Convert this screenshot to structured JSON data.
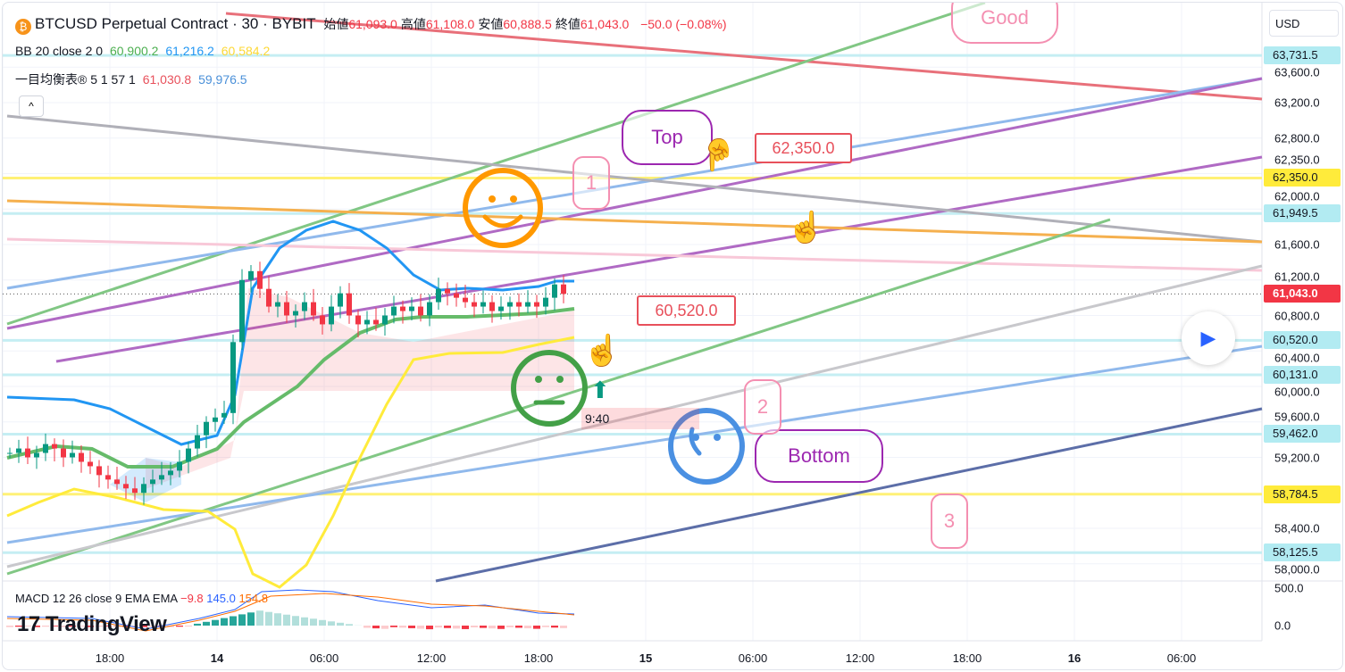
{
  "header": {
    "symbol": "BTCUSD Perpetual Contract · 30 · BYBIT",
    "coin_glyph": "₿",
    "ohlc": [
      {
        "k": "始値",
        "v": "61,093.0"
      },
      {
        "k": "高値",
        "v": "61,108.0"
      },
      {
        "k": "安値",
        "v": "60,888.5"
      },
      {
        "k": "終値",
        "v": "61,043.0"
      }
    ],
    "change": "−50.0 (−0.08%)"
  },
  "indicators": {
    "bb": {
      "label": "BB 20 close 2 0",
      "basis": "60,900.2",
      "upper": "61,216.2",
      "lower": "60,584.2"
    },
    "ichimoku": {
      "label": "一目均衡表® 5 1 57 1",
      "v1": "61,030.8",
      "v2": "59,976.5"
    },
    "macd": {
      "label": "MACD 12 26 close 9 EMA EMA",
      "hist": "−9.8",
      "macd": "145.0",
      "signal": "154.8"
    }
  },
  "collapse_icon": "^",
  "currency": "USD",
  "price_axis": [
    "63,600.0",
    "63,200.0",
    "62,800.0",
    "62,350.0",
    "62,000.0",
    "61,600.0",
    "61,200.0",
    "60,800.0",
    "60,400.0",
    "60,000.0",
    "59,600.0",
    "59,200.0",
    "58,400.0",
    "58,000.0"
  ],
  "macd_axis": [
    "500.0",
    "0.0"
  ],
  "price_tags": [
    {
      "label": "63,731.5",
      "price": 63731.5,
      "color": "#b2ebf2"
    },
    {
      "label": "62,350.0",
      "price": 62350,
      "color": "#ffeb3b"
    },
    {
      "label": "61,949.5",
      "price": 61949.5,
      "color": "#b2ebf2"
    },
    {
      "label": "61,043.0",
      "price": 61043,
      "color": "#f23645"
    },
    {
      "label": "60,520.0",
      "price": 60520,
      "color": "#b2ebf2"
    },
    {
      "label": "60,131.0",
      "price": 60131,
      "color": "#b2ebf2"
    },
    {
      "label": "59,462.0",
      "price": 59462,
      "color": "#b2ebf2"
    },
    {
      "label": "58,784.5",
      "price": 58784.5,
      "color": "#ffeb3b"
    },
    {
      "label": "58,125.5",
      "price": 58125.5,
      "color": "#b2ebf2"
    }
  ],
  "time_axis": [
    {
      "t": "18:00"
    },
    {
      "t": "14",
      "bold": true
    },
    {
      "t": "06:00"
    },
    {
      "t": "12:00"
    },
    {
      "t": "18:00"
    },
    {
      "t": "15",
      "bold": true
    },
    {
      "t": "06:00"
    },
    {
      "t": "12:00"
    },
    {
      "t": "18:00"
    },
    {
      "t": "16",
      "bold": true
    },
    {
      "t": "06:00"
    }
  ],
  "annotations": {
    "top": "Top",
    "good": "Good",
    "bottom": "Bottom",
    "n1": "1",
    "n2": "2",
    "n3": "3",
    "price_a": "62,350.0",
    "price_b": "60,520.0",
    "time_box": "9:40"
  },
  "logo": "TradingView",
  "play_icon": "▶",
  "chart_data": {
    "type": "candlestick",
    "title": "BTCUSD Perpetual Contract · 30 · BYBIT",
    "interval_minutes": 30,
    "ylim": [
      57900,
      64100
    ],
    "closes": [
      59250,
      59300,
      59200,
      59250,
      59350,
      59300,
      59200,
      59250,
      59150,
      59100,
      59000,
      58950,
      58900,
      58850,
      58800,
      58900,
      58950,
      59000,
      59050,
      59150,
      59300,
      59450,
      59600,
      59650,
      59700,
      60500,
      61200,
      61300,
      61100,
      60900,
      60950,
      60800,
      60850,
      60950,
      60800,
      60700,
      60900,
      61050,
      60800,
      60700,
      60750,
      60700,
      60800,
      60900,
      60850,
      60900,
      60800,
      60950,
      61100,
      61050,
      61000,
      60950,
      60900,
      60950,
      60850,
      60900,
      60950,
      60900,
      60950,
      60900,
      61000,
      61150,
      61043
    ],
    "last_price": 61043,
    "colors": {
      "up": "#089981",
      "down": "#f23645"
    }
  }
}
